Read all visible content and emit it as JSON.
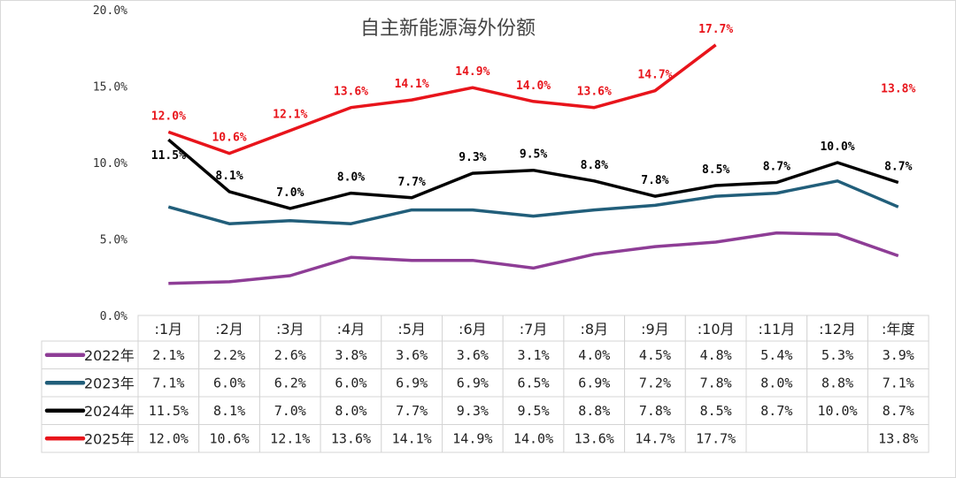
{
  "chart_data": {
    "type": "line",
    "title": "自主新能源海外份额",
    "categories": [
      ":1月",
      ":2月",
      ":3月",
      ":4月",
      ":5月",
      ":6月",
      ":7月",
      ":8月",
      ":9月",
      ":10月",
      ":11月",
      ":12月",
      ":年度"
    ],
    "yticks": [
      "0.0%",
      "5.0%",
      "10.0%",
      "15.0%",
      "20.0%"
    ],
    "ylim": [
      0,
      20
    ],
    "grid": false,
    "legend": "table-left",
    "series": [
      {
        "name": "2022年",
        "color": "#8e3d96",
        "labels": false,
        "line_to_annual": true,
        "values": [
          2.1,
          2.2,
          2.6,
          3.8,
          3.6,
          3.6,
          3.1,
          4.0,
          4.5,
          4.8,
          5.4,
          5.3,
          3.9
        ],
        "cells": [
          "2.1%",
          "2.2%",
          "2.6%",
          "3.8%",
          "3.6%",
          "3.6%",
          "3.1%",
          "4.0%",
          "4.5%",
          "4.8%",
          "5.4%",
          "5.3%",
          "3.9%"
        ]
      },
      {
        "name": "2023年",
        "color": "#215e7a",
        "labels": false,
        "line_to_annual": true,
        "values": [
          7.1,
          6.0,
          6.2,
          6.0,
          6.9,
          6.9,
          6.5,
          6.9,
          7.2,
          7.8,
          8.0,
          8.8,
          7.1
        ],
        "cells": [
          "7.1%",
          "6.0%",
          "6.2%",
          "6.0%",
          "6.9%",
          "6.9%",
          "6.5%",
          "6.9%",
          "7.2%",
          "7.8%",
          "8.0%",
          "8.8%",
          "7.1%"
        ]
      },
      {
        "name": "2024年",
        "color": "#000000",
        "labels": true,
        "line_to_annual": true,
        "values": [
          11.5,
          8.1,
          7.0,
          8.0,
          7.7,
          9.3,
          9.5,
          8.8,
          7.8,
          8.5,
          8.7,
          10.0,
          8.7
        ],
        "cells": [
          "11.5%",
          "8.1%",
          "7.0%",
          "8.0%",
          "7.7%",
          "9.3%",
          "9.5%",
          "8.8%",
          "7.8%",
          "8.5%",
          "8.7%",
          "10.0%",
          "8.7%"
        ]
      },
      {
        "name": "2025年",
        "color": "#e8141b",
        "labels": true,
        "line_to_annual": false,
        "values": [
          12.0,
          10.6,
          12.1,
          13.6,
          14.1,
          14.9,
          14.0,
          13.6,
          14.7,
          17.7,
          null,
          null,
          13.8
        ],
        "cells": [
          "12.0%",
          "10.6%",
          "12.1%",
          "13.6%",
          "14.1%",
          "14.9%",
          "14.0%",
          "13.6%",
          "14.7%",
          "17.7%",
          "",
          "",
          "13.8%"
        ]
      }
    ]
  }
}
